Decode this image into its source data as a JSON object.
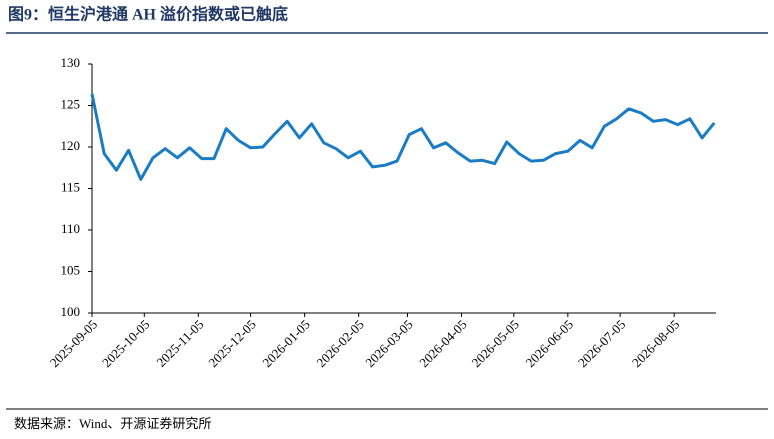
{
  "chart_data": {
    "type": "line",
    "title": "图9：恒生沪港通 AH 溢价指数或已触底",
    "source": "数据来源：Wind、开源证券研究所",
    "x": [
      "2025-09-05",
      "2025-09-12",
      "2025-09-19",
      "2025-09-26",
      "2025-10-03",
      "2025-10-10",
      "2025-10-17",
      "2025-10-24",
      "2025-10-31",
      "2025-11-07",
      "2025-11-14",
      "2025-11-21",
      "2025-11-28",
      "2025-12-05",
      "2025-12-12",
      "2025-12-19",
      "2025-12-26",
      "2026-01-02",
      "2026-01-09",
      "2026-01-16",
      "2026-01-23",
      "2026-01-30",
      "2026-02-06",
      "2026-02-13",
      "2026-02-20",
      "2026-02-27",
      "2026-03-06",
      "2026-03-13",
      "2026-03-20",
      "2026-03-27",
      "2026-04-03",
      "2026-04-10",
      "2026-04-17",
      "2026-04-24",
      "2026-05-01",
      "2026-05-08",
      "2026-05-15",
      "2026-05-22",
      "2026-05-29",
      "2026-06-05",
      "2026-06-12",
      "2026-06-19",
      "2026-06-26",
      "2026-07-03",
      "2026-07-10",
      "2026-07-17",
      "2026-07-24",
      "2026-07-31",
      "2026-08-07",
      "2026-08-14",
      "2026-08-21",
      "2026-08-28"
    ],
    "series": [
      {
        "name": "恒生沪港通AH溢价指数",
        "color": "#1a7cc4",
        "values": [
          126.4,
          119.2,
          117.2,
          119.6,
          116.1,
          118.7,
          119.8,
          118.7,
          119.9,
          118.6,
          118.6,
          122.2,
          120.8,
          119.9,
          120.0,
          121.6,
          123.1,
          121.1,
          122.8,
          120.5,
          119.8,
          118.7,
          119.5,
          117.6,
          117.8,
          118.3,
          121.5,
          122.2,
          119.9,
          120.5,
          119.3,
          118.3,
          118.4,
          118.0,
          120.6,
          119.2,
          118.3,
          118.4,
          119.2,
          119.5,
          120.8,
          119.9,
          122.5,
          123.4,
          124.6,
          124.1,
          123.1,
          123.3,
          122.7,
          123.4,
          121.1,
          122.9
        ]
      }
    ],
    "xlim": [
      "2025-09-05",
      "2026-08-29"
    ],
    "xticks": [
      "2025-09-05",
      "2025-10-05",
      "2025-11-05",
      "2025-12-05",
      "2026-01-05",
      "2026-02-05",
      "2026-03-05",
      "2026-04-05",
      "2026-05-05",
      "2026-06-05",
      "2026-07-05",
      "2026-08-05"
    ],
    "ylim": [
      100,
      130
    ],
    "yticks": [
      100,
      105,
      110,
      115,
      120,
      125,
      130
    ]
  }
}
